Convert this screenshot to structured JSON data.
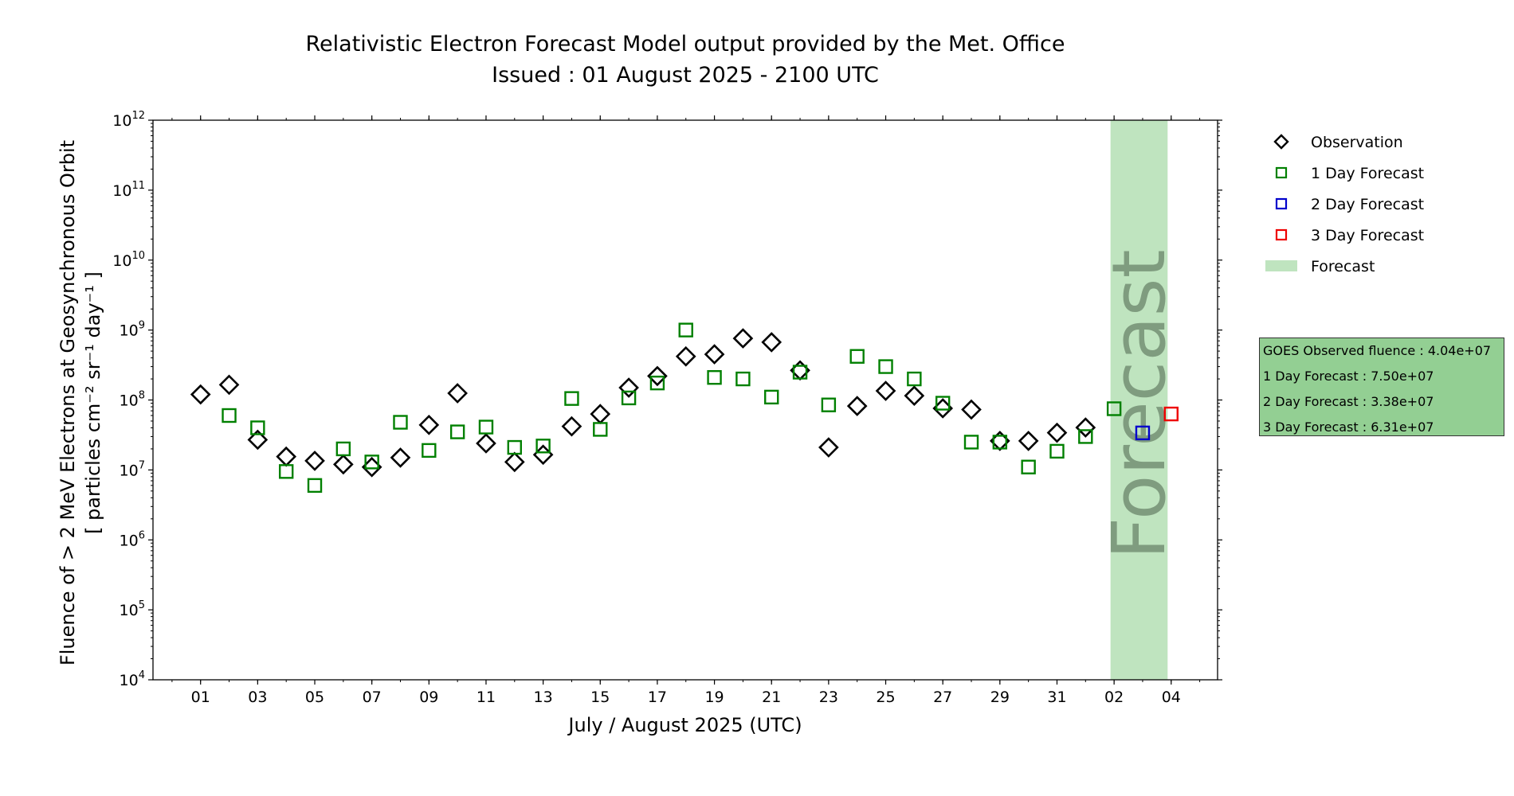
{
  "chart_data": {
    "type": "scatter",
    "title": "Relativistic Electron Forecast Model output provided by the Met. Office",
    "subtitle": "Issued : 01 August 2025 - 2100 UTC",
    "xlabel": "July / August 2025 (UTC)",
    "ylabel_line1": "Fluence of > 2 MeV Electrons at Geosynchronous Orbit",
    "ylabel_line2": "[ particles cm⁻² sr⁻¹ day⁻¹ ]",
    "y_scale": "log",
    "ylim": [
      10000,
      1000000000000
    ],
    "xlim": [
      "2025-06-29T08:00",
      "2025-08-05T15:00"
    ],
    "y_ticks": [
      {
        "value": 10000,
        "base": "10",
        "exp": "4"
      },
      {
        "value": 100000,
        "base": "10",
        "exp": "5"
      },
      {
        "value": 1000000,
        "base": "10",
        "exp": "6"
      },
      {
        "value": 10000000,
        "base": "10",
        "exp": "7"
      },
      {
        "value": 100000000,
        "base": "10",
        "exp": "8"
      },
      {
        "value": 1000000000,
        "base": "10",
        "exp": "9"
      },
      {
        "value": 10000000000,
        "base": "10",
        "exp": "10"
      },
      {
        "value": 100000000000,
        "base": "10",
        "exp": "11"
      },
      {
        "value": 1000000000000,
        "base": "10",
        "exp": "12"
      }
    ],
    "x_ticks": [
      {
        "date": "2025-07-01",
        "label": "01"
      },
      {
        "date": "2025-07-03",
        "label": "03"
      },
      {
        "date": "2025-07-05",
        "label": "05"
      },
      {
        "date": "2025-07-07",
        "label": "07"
      },
      {
        "date": "2025-07-09",
        "label": "09"
      },
      {
        "date": "2025-07-11",
        "label": "11"
      },
      {
        "date": "2025-07-13",
        "label": "13"
      },
      {
        "date": "2025-07-15",
        "label": "15"
      },
      {
        "date": "2025-07-17",
        "label": "17"
      },
      {
        "date": "2025-07-19",
        "label": "19"
      },
      {
        "date": "2025-07-21",
        "label": "21"
      },
      {
        "date": "2025-07-23",
        "label": "23"
      },
      {
        "date": "2025-07-25",
        "label": "25"
      },
      {
        "date": "2025-07-27",
        "label": "27"
      },
      {
        "date": "2025-07-29",
        "label": "29"
      },
      {
        "date": "2025-07-31",
        "label": "31"
      },
      {
        "date": "2025-08-02",
        "label": "02"
      },
      {
        "date": "2025-08-04",
        "label": "04"
      }
    ],
    "forecast_band": {
      "start": "2025-08-01T21:00",
      "end": "2025-08-03T21:00",
      "label": "Forecast",
      "color": "#bfe4bf"
    },
    "series": [
      {
        "name": "Observation",
        "marker": "diamond",
        "color": "#000000",
        "points": [
          {
            "x": "2025-07-01",
            "y": 120000000
          },
          {
            "x": "2025-07-02",
            "y": 165000000
          },
          {
            "x": "2025-07-03",
            "y": 27000000
          },
          {
            "x": "2025-07-04",
            "y": 15500000
          },
          {
            "x": "2025-07-05",
            "y": 13500000
          },
          {
            "x": "2025-07-06",
            "y": 12000000
          },
          {
            "x": "2025-07-07",
            "y": 11000000
          },
          {
            "x": "2025-07-08",
            "y": 15000000
          },
          {
            "x": "2025-07-09",
            "y": 44000000
          },
          {
            "x": "2025-07-10",
            "y": 125000000
          },
          {
            "x": "2025-07-11",
            "y": 24000000
          },
          {
            "x": "2025-07-12",
            "y": 13000000
          },
          {
            "x": "2025-07-13",
            "y": 16500000
          },
          {
            "x": "2025-07-14",
            "y": 42000000
          },
          {
            "x": "2025-07-15",
            "y": 63000000
          },
          {
            "x": "2025-07-16",
            "y": 150000000
          },
          {
            "x": "2025-07-17",
            "y": 220000000
          },
          {
            "x": "2025-07-18",
            "y": 420000000
          },
          {
            "x": "2025-07-19",
            "y": 450000000
          },
          {
            "x": "2025-07-20",
            "y": 760000000
          },
          {
            "x": "2025-07-21",
            "y": 670000000
          },
          {
            "x": "2025-07-22",
            "y": 265000000
          },
          {
            "x": "2025-07-23",
            "y": 21000000
          },
          {
            "x": "2025-07-24",
            "y": 82000000
          },
          {
            "x": "2025-07-25",
            "y": 135000000
          },
          {
            "x": "2025-07-26",
            "y": 115000000
          },
          {
            "x": "2025-07-27",
            "y": 76000000
          },
          {
            "x": "2025-07-28",
            "y": 73000000
          },
          {
            "x": "2025-07-29",
            "y": 26000000
          },
          {
            "x": "2025-07-30",
            "y": 26000000
          },
          {
            "x": "2025-07-31",
            "y": 34000000
          },
          {
            "x": "2025-08-01",
            "y": 40400000
          }
        ]
      },
      {
        "name": "1 Day Forecast",
        "marker": "square",
        "color": "#008000",
        "points": [
          {
            "x": "2025-07-02",
            "y": 60000000
          },
          {
            "x": "2025-07-03",
            "y": 40000000
          },
          {
            "x": "2025-07-04",
            "y": 9500000
          },
          {
            "x": "2025-07-05",
            "y": 6000000
          },
          {
            "x": "2025-07-06",
            "y": 20000000
          },
          {
            "x": "2025-07-07",
            "y": 13000000
          },
          {
            "x": "2025-07-08",
            "y": 48000000
          },
          {
            "x": "2025-07-09",
            "y": 19000000
          },
          {
            "x": "2025-07-10",
            "y": 35000000
          },
          {
            "x": "2025-07-11",
            "y": 41000000
          },
          {
            "x": "2025-07-12",
            "y": 21000000
          },
          {
            "x": "2025-07-13",
            "y": 22000000
          },
          {
            "x": "2025-07-14",
            "y": 105000000
          },
          {
            "x": "2025-07-15",
            "y": 38000000
          },
          {
            "x": "2025-07-16",
            "y": 107000000
          },
          {
            "x": "2025-07-17",
            "y": 175000000
          },
          {
            "x": "2025-07-18",
            "y": 1000000000
          },
          {
            "x": "2025-07-19",
            "y": 210000000
          },
          {
            "x": "2025-07-20",
            "y": 200000000
          },
          {
            "x": "2025-07-21",
            "y": 110000000
          },
          {
            "x": "2025-07-22",
            "y": 250000000
          },
          {
            "x": "2025-07-23",
            "y": 85000000
          },
          {
            "x": "2025-07-24",
            "y": 420000000
          },
          {
            "x": "2025-07-25",
            "y": 300000000
          },
          {
            "x": "2025-07-26",
            "y": 200000000
          },
          {
            "x": "2025-07-27",
            "y": 90000000
          },
          {
            "x": "2025-07-28",
            "y": 25000000
          },
          {
            "x": "2025-07-29",
            "y": 25000000
          },
          {
            "x": "2025-07-30",
            "y": 11000000
          },
          {
            "x": "2025-07-31",
            "y": 18500000
          },
          {
            "x": "2025-08-01",
            "y": 30000000
          },
          {
            "x": "2025-08-02",
            "y": 75000000
          }
        ]
      },
      {
        "name": "2 Day Forecast",
        "marker": "square",
        "color": "#0000cc",
        "points": [
          {
            "x": "2025-08-03",
            "y": 33800000
          }
        ]
      },
      {
        "name": "3 Day Forecast",
        "marker": "square",
        "color": "#ee0000",
        "points": [
          {
            "x": "2025-08-04",
            "y": 63100000
          }
        ]
      }
    ],
    "legend": {
      "placement": "right",
      "entries": [
        {
          "label": "Observation",
          "marker": "diamond",
          "color": "#000000"
        },
        {
          "label": "1 Day Forecast",
          "marker": "square",
          "color": "#008000"
        },
        {
          "label": "2 Day Forecast",
          "marker": "square",
          "color": "#0000cc"
        },
        {
          "label": "3 Day Forecast",
          "marker": "square",
          "color": "#ee0000"
        },
        {
          "label": "Forecast",
          "marker": "band",
          "color": "#bfe4bf"
        }
      ]
    },
    "info_box": {
      "lines": [
        "GOES Observed fluence : 4.04e+07",
        "1 Day Forecast : 7.50e+07",
        "2 Day Forecast : 3.38e+07",
        "3 Day Forecast : 6.31e+07"
      ],
      "color": "#93cf93"
    }
  }
}
